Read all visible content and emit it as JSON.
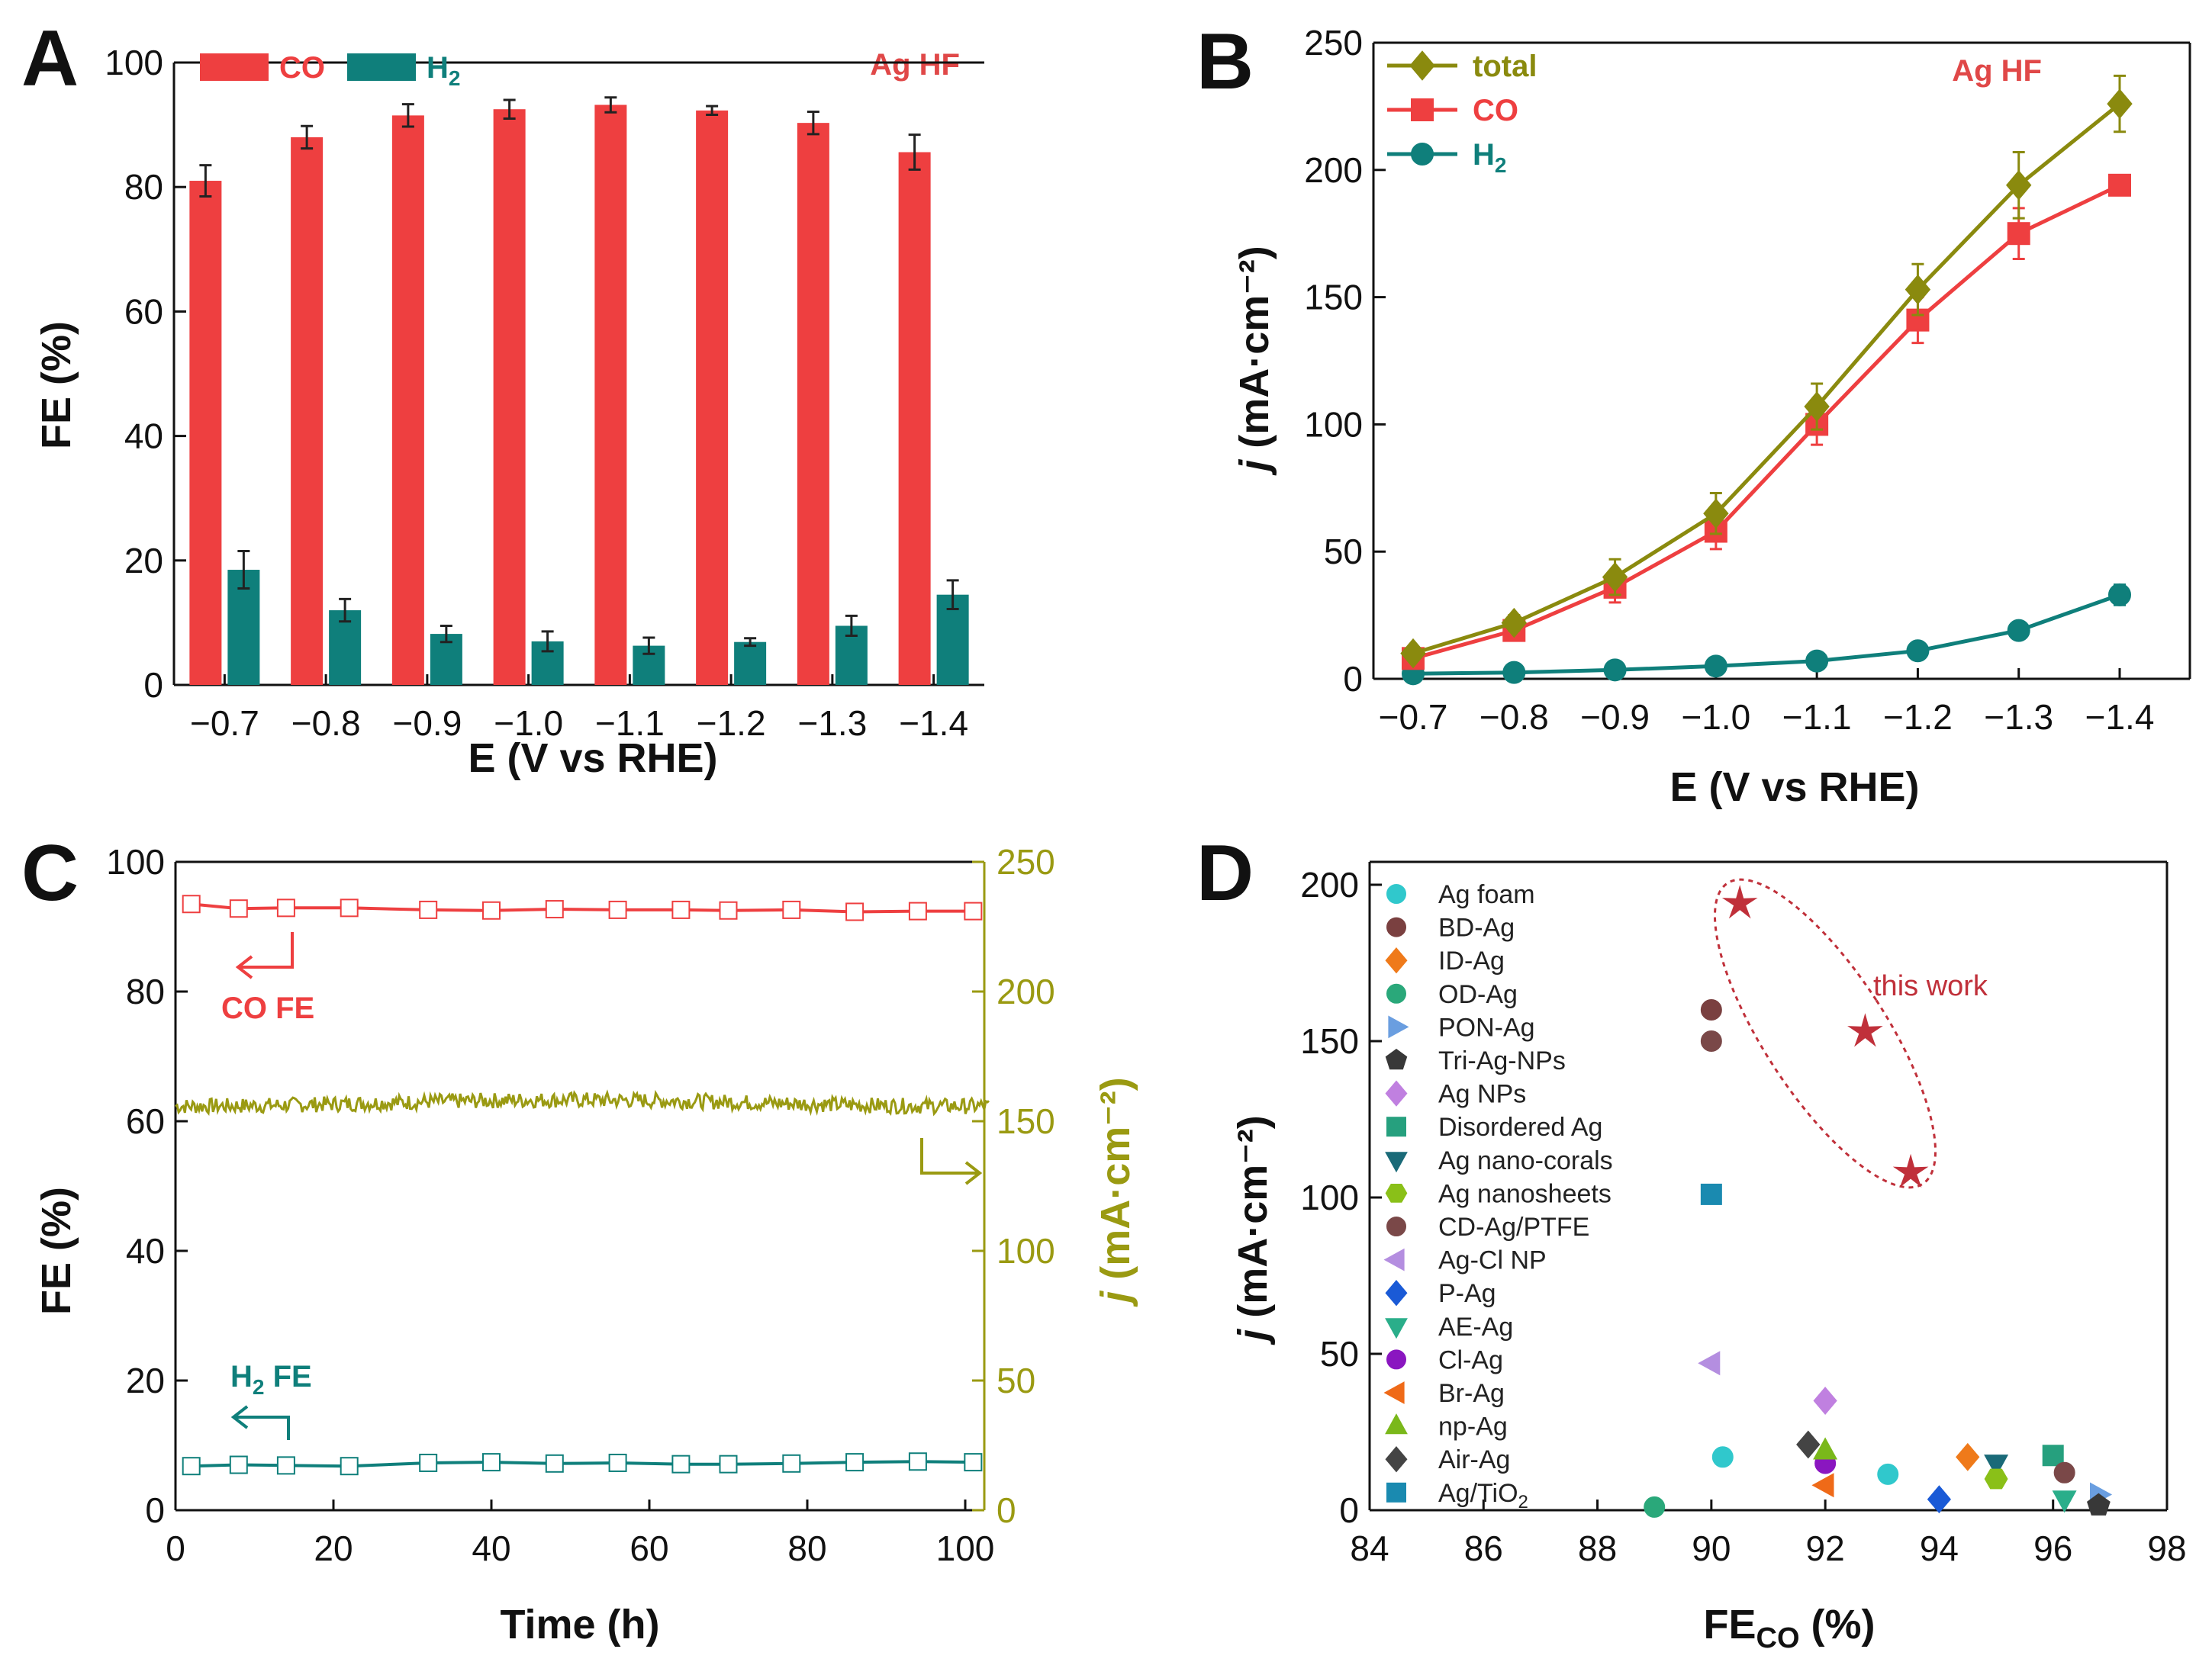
{
  "colors": {
    "co": "#ee3f40",
    "h2": "#0f7f7b",
    "total": "#8a8a0e",
    "stab_j": "#9a9a12",
    "axis": "#111111",
    "highlight": "#c0303a"
  },
  "panels": {
    "a": {
      "letter": "A",
      "tag": "Ag HF"
    },
    "b": {
      "letter": "B",
      "tag": "Ag HF",
      "ylabel_j": "j",
      "ylabel_rest": " (mA·cm⁻²)"
    },
    "c": {
      "letter": "C",
      "ylabel_right_j": "j",
      "ylabel_right_rest": " (mA·cm⁻²)",
      "annot_co": "CO FE",
      "annot_h2_main": "H",
      "annot_h2_sub": "2",
      "annot_h2_tail": " FE"
    },
    "d": {
      "letter": "D",
      "xlabel_main": "FE",
      "xlabel_sub": "CO",
      "xlabel_tail": " (%)",
      "ylabel_j": "j",
      "ylabel_rest": " (mA·cm⁻²)",
      "annot": "this work"
    }
  },
  "chart_data": [
    {
      "id": "A",
      "type": "bar",
      "title": "Ag HF",
      "xlabel": "E (V vs RHE)",
      "ylabel": "FE (%)",
      "ylim": [
        0,
        100
      ],
      "yticks": [
        0,
        20,
        40,
        60,
        80,
        100
      ],
      "categories": [
        "−0.7",
        "−0.8",
        "−0.9",
        "−1.0",
        "−1.1",
        "−1.2",
        "−1.3",
        "−1.4"
      ],
      "series": [
        {
          "name": "CO",
          "label_main": "CO",
          "label_sub": "",
          "color": "#ee3f40",
          "values": [
            81,
            88,
            91.5,
            92.5,
            93.2,
            92.3,
            90.3,
            85.6
          ],
          "errors": [
            2.5,
            1.8,
            1.8,
            1.5,
            1.2,
            0.7,
            1.8,
            2.8
          ]
        },
        {
          "name": "H2",
          "label_main": "H",
          "label_sub": "2",
          "color": "#0f7f7b",
          "values": [
            18.5,
            12,
            8.2,
            7,
            6.3,
            6.9,
            9.5,
            14.5
          ],
          "errors": [
            3,
            1.8,
            1.3,
            1.6,
            1.3,
            0.6,
            1.6,
            2.3
          ]
        }
      ]
    },
    {
      "id": "B",
      "type": "line",
      "title": "Ag HF",
      "xlabel": "E (V vs RHE)",
      "ylabel": "j (mA·cm⁻²)",
      "ylim": [
        0,
        250
      ],
      "yticks": [
        0,
        50,
        100,
        150,
        200,
        250
      ],
      "categories": [
        "−0.7",
        "−0.8",
        "−0.9",
        "−1.0",
        "−1.1",
        "−1.2",
        "−1.3",
        "−1.4"
      ],
      "series": [
        {
          "name": "total",
          "label_main": "total",
          "label_sub": "",
          "marker": "diamond",
          "color": "#8a8a0e",
          "values": [
            10,
            22,
            40,
            65,
            107,
            153,
            194,
            226
          ],
          "errors": [
            2,
            3,
            7,
            8,
            9,
            10,
            13,
            11
          ]
        },
        {
          "name": "CO",
          "label_main": "CO",
          "label_sub": "",
          "marker": "square",
          "color": "#ee3f40",
          "values": [
            8,
            19,
            36,
            58,
            100,
            141,
            175,
            194
          ],
          "errors": [
            2,
            3,
            6,
            7,
            8,
            9,
            10,
            3
          ]
        },
        {
          "name": "H2",
          "label_main": "H",
          "label_sub": "2",
          "marker": "circle",
          "color": "#0f7f7b",
          "values": [
            2,
            2.5,
            3.5,
            5,
            7,
            11,
            19,
            33
          ],
          "errors": [
            1,
            1,
            1,
            1,
            1,
            1,
            2,
            4
          ]
        }
      ]
    },
    {
      "id": "C",
      "type": "line",
      "xlabel": "Time (h)",
      "ylabel": "FE (%)",
      "ylabel_right": "j (mA·cm⁻²)",
      "xlim": [
        0,
        100
      ],
      "ylim": [
        0,
        100
      ],
      "ylim_right": [
        0,
        250
      ],
      "xticks": [
        0,
        20,
        40,
        60,
        80,
        100
      ],
      "yticks": [
        0,
        20,
        40,
        60,
        80,
        100
      ],
      "yticks_right": [
        0,
        50,
        100,
        150,
        200,
        250
      ],
      "series": [
        {
          "name": "CO FE",
          "axis": "left",
          "color": "#ee3f40",
          "x": [
            2,
            8,
            14,
            22,
            32,
            40,
            48,
            56,
            64,
            70,
            78,
            86,
            94,
            101
          ],
          "values": [
            93.5,
            92.8,
            92.9,
            92.9,
            92.6,
            92.5,
            92.7,
            92.6,
            92.6,
            92.5,
            92.6,
            92.3,
            92.4,
            92.4
          ]
        },
        {
          "name": "H2 FE",
          "axis": "left",
          "color": "#0f7f7b",
          "x": [
            2,
            8,
            14,
            22,
            32,
            40,
            48,
            56,
            64,
            70,
            78,
            86,
            94,
            101
          ],
          "values": [
            6.8,
            7.0,
            6.9,
            6.8,
            7.3,
            7.4,
            7.2,
            7.3,
            7.1,
            7.1,
            7.2,
            7.4,
            7.5,
            7.4
          ]
        },
        {
          "name": "j",
          "axis": "right",
          "color": "#9a9a12",
          "x_range": [
            0,
            103
          ],
          "mean": 157,
          "fluctuation": 3
        }
      ]
    },
    {
      "id": "D",
      "type": "scatter",
      "xlabel": "FE_CO (%)",
      "ylabel": "j (mA·cm⁻²)",
      "xlim": [
        84,
        98
      ],
      "ylim": [
        0,
        200
      ],
      "xticks": [
        84,
        86,
        88,
        90,
        92,
        94,
        96,
        98
      ],
      "yticks": [
        0,
        50,
        100,
        150,
        200
      ],
      "series": [
        {
          "name": "Ag foam",
          "marker": "circle",
          "color": "#30c8cc",
          "points": [
            [
              90.2,
              17
            ],
            [
              93.1,
              11.5
            ]
          ]
        },
        {
          "name": "BD-Ag",
          "marker": "circle",
          "color": "#7a4040",
          "points": [
            [
              90,
              160
            ]
          ]
        },
        {
          "name": "ID-Ag",
          "marker": "diamond",
          "color": "#ef7a1a",
          "points": [
            [
              94.5,
              17
            ]
          ]
        },
        {
          "name": "OD-Ag",
          "marker": "circle",
          "color": "#2aa87a",
          "points": [
            [
              89,
              1
            ]
          ]
        },
        {
          "name": "PON-Ag",
          "marker": "triangle-right",
          "color": "#6a9ee0",
          "points": [
            [
              96.8,
              5
            ]
          ]
        },
        {
          "name": "Tri-Ag-NPs",
          "marker": "pentagon",
          "color": "#383838",
          "points": [
            [
              96.8,
              1.5
            ]
          ]
        },
        {
          "name": "Ag NPs",
          "marker": "diamond",
          "color": "#c080e0",
          "points": [
            [
              92,
              35
            ]
          ]
        },
        {
          "name": "Disordered Ag",
          "marker": "square",
          "color": "#26a07e",
          "points": [
            [
              96,
              17.5
            ]
          ]
        },
        {
          "name": "Ag nano-corals",
          "marker": "triangle-down",
          "color": "#1a6a78",
          "points": [
            [
              95,
              15
            ]
          ]
        },
        {
          "name": "Ag nanosheets",
          "marker": "hexagon",
          "color": "#8ac018",
          "points": [
            [
              95,
              10
            ]
          ]
        },
        {
          "name": "CD-Ag/PTFE",
          "marker": "circle",
          "color": "#7a4848",
          "points": [
            [
              90,
              150
            ],
            [
              96.2,
              12
            ]
          ]
        },
        {
          "name": "Ag-Cl NP",
          "marker": "triangle-left",
          "color": "#b48ee0",
          "points": [
            [
              90,
              47
            ]
          ]
        },
        {
          "name": "P-Ag",
          "marker": "diamond",
          "color": "#1a5ad6",
          "points": [
            [
              94,
              3.5
            ]
          ]
        },
        {
          "name": "AE-Ag",
          "marker": "triangle-down",
          "color": "#2aae8a",
          "points": [
            [
              96.2,
              3.5
            ]
          ]
        },
        {
          "name": "Cl-Ag",
          "marker": "circle",
          "color": "#8a16c0",
          "points": [
            [
              92,
              15
            ]
          ]
        },
        {
          "name": "Br-Ag",
          "marker": "triangle-left",
          "color": "#ef6a18",
          "points": [
            [
              92,
              8
            ]
          ]
        },
        {
          "name": "np-Ag",
          "marker": "triangle-up",
          "color": "#7ab81a",
          "points": [
            [
              92,
              19
            ]
          ]
        },
        {
          "name": "Air-Ag",
          "marker": "diamond",
          "color": "#444444",
          "points": [
            [
              91.7,
              21
            ]
          ]
        },
        {
          "name": "Ag/TiO2",
          "label_main": "Ag/TiO",
          "label_sub": "2",
          "marker": "square",
          "color": "#1a8ab0",
          "points": [
            [
              90,
              101
            ]
          ]
        },
        {
          "name": "this work",
          "marker": "star",
          "color": "#c0303a",
          "points": [
            [
              90.5,
              194
            ],
            [
              92.7,
              153
            ],
            [
              93.5,
              108
            ]
          ]
        }
      ]
    }
  ]
}
